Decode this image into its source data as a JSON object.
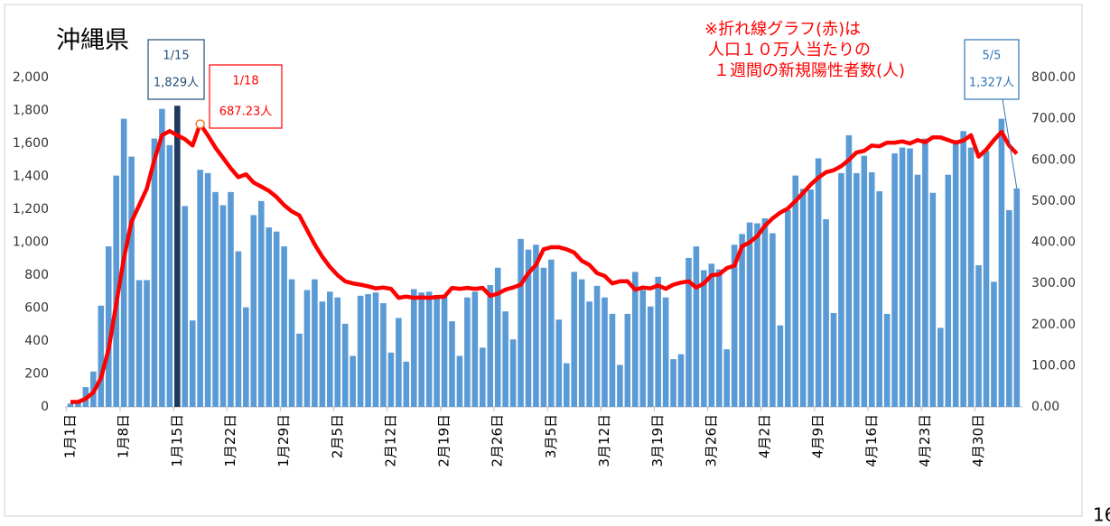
{
  "chart_data": {
    "type": "bar_line",
    "title": "沖縄県",
    "note": [
      "※折れ線グラフ(赤)は",
      "人口１０万人当たりの",
      "１週間の新規陽性者数(人)"
    ],
    "page_number": "16",
    "categories": [
      "1月1日",
      null,
      null,
      null,
      null,
      null,
      null,
      "1月8日",
      null,
      null,
      null,
      null,
      null,
      null,
      "1月15日",
      null,
      null,
      null,
      null,
      null,
      null,
      "1月22日",
      null,
      null,
      null,
      null,
      null,
      null,
      "1月29日",
      null,
      null,
      null,
      null,
      null,
      null,
      "2月5日",
      null,
      null,
      null,
      null,
      null,
      null,
      "2月12日",
      null,
      null,
      null,
      null,
      null,
      null,
      "2月19日",
      null,
      null,
      null,
      null,
      null,
      null,
      "2月26日",
      null,
      null,
      null,
      null,
      null,
      null,
      "3月5日",
      null,
      null,
      null,
      null,
      null,
      null,
      "3月12日",
      null,
      null,
      null,
      null,
      null,
      null,
      "3月19日",
      null,
      null,
      null,
      null,
      null,
      null,
      "3月26日",
      null,
      null,
      null,
      null,
      null,
      null,
      "4月2日",
      null,
      null,
      null,
      null,
      null,
      null,
      "4月9日",
      null,
      null,
      null,
      null,
      null,
      null,
      "4月16日",
      null,
      null,
      null,
      null,
      null,
      null,
      "4月23日",
      null,
      null,
      null,
      null,
      null,
      null,
      "4月30日",
      null,
      null,
      null,
      null,
      null
    ],
    "series": [
      {
        "type": "bar",
        "color": "#5b9bd5",
        "highlight_color": "#1f3a5f",
        "values": [
          20,
          30,
          120,
          215,
          615,
          975,
          1405,
          1750,
          1520,
          770,
          770,
          1630,
          1810,
          1590,
          1829,
          1220,
          525,
          1440,
          1420,
          1305,
          1225,
          1305,
          945,
          605,
          1165,
          1250,
          1090,
          1065,
          975,
          775,
          445,
          710,
          775,
          640,
          700,
          665,
          505,
          310,
          675,
          685,
          695,
          630,
          330,
          540,
          275,
          715,
          695,
          700,
          680,
          670,
          520,
          310,
          665,
          700,
          360,
          740,
          845,
          580,
          410,
          1020,
          955,
          985,
          845,
          895,
          530,
          265,
          820,
          775,
          640,
          735,
          665,
          565,
          255,
          565,
          820,
          710,
          610,
          790,
          665,
          290,
          320,
          905,
          975,
          830,
          870,
          835,
          350,
          985,
          1050,
          1120,
          1115,
          1145,
          1055,
          495,
          1195,
          1405,
          1325,
          1320,
          1510,
          1140,
          570,
          1420,
          1650,
          1420,
          1525,
          1425,
          1310,
          565,
          1540,
          1575,
          1570,
          1410,
          1630,
          1300,
          480,
          1410,
          1620,
          1675,
          1575,
          860,
          1555,
          760,
          1750,
          1195,
          1327
        ]
      },
      {
        "type": "line",
        "axis": "y2",
        "color": "#ff0000",
        "values": [
          12,
          12,
          20,
          35,
          70,
          140,
          250,
          360,
          450,
          490,
          530,
          600,
          660,
          670,
          660,
          650,
          635,
          687.23,
          660,
          630,
          605,
          580,
          558,
          565,
          545,
          535,
          525,
          510,
          490,
          475,
          465,
          430,
          395,
          365,
          340,
          320,
          305,
          300,
          297,
          293,
          288,
          290,
          287,
          265,
          268,
          265,
          266,
          265,
          267,
          268,
          289,
          287,
          289,
          287,
          289,
          270,
          275,
          285,
          290,
          297,
          325,
          345,
          383,
          388,
          388,
          383,
          375,
          355,
          345,
          325,
          318,
          300,
          305,
          305,
          285,
          290,
          288,
          295,
          287,
          297,
          302,
          305,
          290,
          300,
          320,
          322,
          337,
          343,
          390,
          400,
          415,
          440,
          458,
          472,
          482,
          500,
          520,
          540,
          557,
          570,
          575,
          585,
          600,
          618,
          622,
          635,
          633,
          642,
          642,
          645,
          640,
          648,
          643,
          655,
          655,
          648,
          642,
          647,
          660,
          608,
          625,
          648,
          668,
          635,
          615
        ]
      }
    ],
    "annotations": [
      {
        "date": "1/15",
        "text": "1,829人",
        "color": "#1f4e79"
      },
      {
        "date": "1/18",
        "text": "687.23人",
        "color": "#ff0000"
      },
      {
        "date": "5/5",
        "text": "1,327人",
        "color": "#2e75b6"
      }
    ],
    "ylim": [
      0,
      2000
    ],
    "yticks": [
      0,
      200,
      400,
      600,
      800,
      {
        "value": 1000,
        "label": "1,000"
      },
      {
        "value": 1200,
        "label": "1,200"
      },
      {
        "value": 1400,
        "label": "1,400"
      },
      {
        "value": 1600,
        "label": "1,600"
      },
      {
        "value": 1800,
        "label": "1,800"
      },
      {
        "value": 2000,
        "label": "2,000"
      }
    ],
    "y2lim": [
      0,
      800
    ],
    "y2ticks": [
      {
        "value": 0,
        "label": "0.00"
      },
      {
        "value": 100,
        "label": "100.00"
      },
      {
        "value": 200,
        "label": "200.00"
      },
      {
        "value": 300,
        "label": "300.00"
      },
      {
        "value": 400,
        "label": "400.00"
      },
      {
        "value": 500,
        "label": "500.00"
      },
      {
        "value": 600,
        "label": "600.00"
      },
      {
        "value": 700,
        "label": "700.00"
      },
      {
        "value": 800,
        "label": "800.00"
      }
    ]
  }
}
